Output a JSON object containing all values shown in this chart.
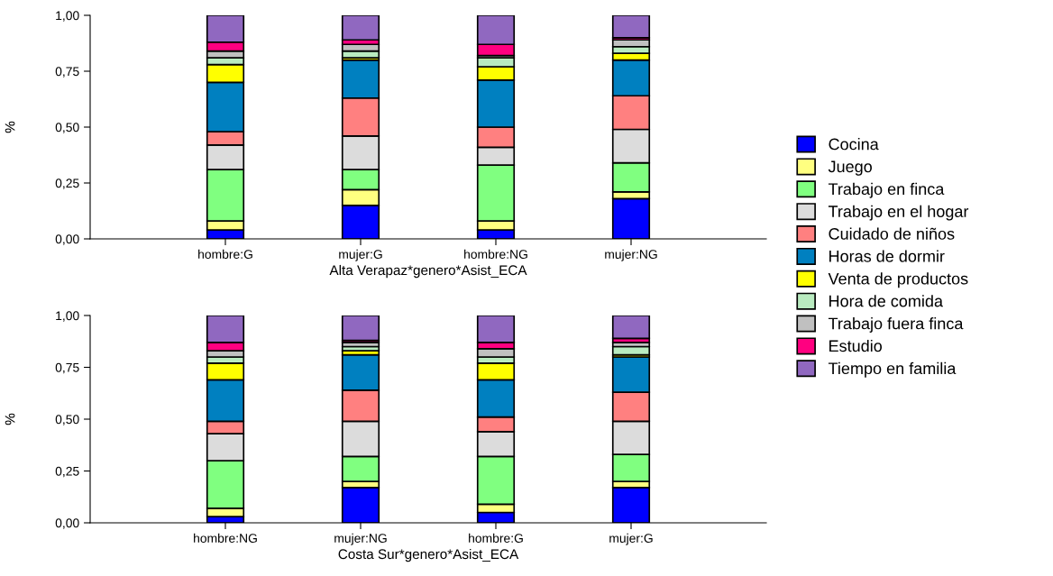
{
  "chart_data": [
    {
      "type": "bar",
      "stacked": true,
      "xlabel": "Alta Verapaz*genero*Asist_ECA",
      "ylabel": "%",
      "categories": [
        "hombre:G",
        "mujer:G",
        "hombre:NG",
        "mujer:NG"
      ],
      "ylim": [
        0,
        1
      ],
      "yticks": [
        {
          "value": 0,
          "label": "0,00"
        },
        {
          "value": 0.25,
          "label": "0,25"
        },
        {
          "value": 0.5,
          "label": "0,50"
        },
        {
          "value": 0.75,
          "label": "0,75"
        },
        {
          "value": 1,
          "label": "1,00"
        }
      ],
      "grid": false,
      "legend": "right",
      "series": [
        {
          "name": "Cocina",
          "color": "#0000ff",
          "values": [
            0.04,
            0.15,
            0.04,
            0.18
          ]
        },
        {
          "name": "Juego",
          "color": "#ffff80",
          "values": [
            0.04,
            0.07,
            0.04,
            0.03
          ]
        },
        {
          "name": "Trabajo en finca",
          "color": "#80ff80",
          "values": [
            0.23,
            0.09,
            0.25,
            0.13
          ]
        },
        {
          "name": "Trabajo en el hogar",
          "color": "#dcdcdc",
          "values": [
            0.11,
            0.15,
            0.08,
            0.15
          ]
        },
        {
          "name": "Cuidado de niños",
          "color": "#ff8080",
          "values": [
            0.06,
            0.17,
            0.09,
            0.15
          ]
        },
        {
          "name": "Horas de dormir",
          "color": "#0080c0",
          "values": [
            0.22,
            0.17,
            0.21,
            0.16
          ]
        },
        {
          "name": "Venta de productos",
          "color": "#ffff00",
          "values": [
            0.08,
            0.01,
            0.06,
            0.03
          ]
        },
        {
          "name": "Hora de comida",
          "color": "#b9ebc0",
          "values": [
            0.03,
            0.03,
            0.04,
            0.03
          ]
        },
        {
          "name": "Trabajo fuera finca",
          "color": "#c0c0c0",
          "values": [
            0.03,
            0.03,
            0.01,
            0.03
          ]
        },
        {
          "name": "Estudio",
          "color": "#ff0080",
          "values": [
            0.04,
            0.02,
            0.05,
            0.01
          ]
        },
        {
          "name": "Tiempo en familia",
          "color": "#9068c0",
          "values": [
            0.12,
            0.11,
            0.13,
            0.1
          ]
        }
      ]
    },
    {
      "type": "bar",
      "stacked": true,
      "xlabel": "Costa Sur*genero*Asist_ECA",
      "ylabel": "%",
      "categories": [
        "hombre:NG",
        "mujer:NG",
        "hombre:G",
        "mujer:G"
      ],
      "ylim": [
        0,
        1
      ],
      "yticks": [
        {
          "value": 0,
          "label": "0,00"
        },
        {
          "value": 0.25,
          "label": "0,25"
        },
        {
          "value": 0.5,
          "label": "0,50"
        },
        {
          "value": 0.75,
          "label": "0,75"
        },
        {
          "value": 1,
          "label": "1,00"
        }
      ],
      "grid": false,
      "legend": false,
      "series": [
        {
          "color": "#0000ff",
          "values": [
            0.03,
            0.17,
            0.05,
            0.17
          ]
        },
        {
          "color": "#ffff80",
          "values": [
            0.04,
            0.03,
            0.04,
            0.03
          ]
        },
        {
          "color": "#80ff80",
          "values": [
            0.23,
            0.12,
            0.23,
            0.13
          ]
        },
        {
          "color": "#dcdcdc",
          "values": [
            0.13,
            0.17,
            0.12,
            0.16
          ]
        },
        {
          "color": "#ff8080",
          "values": [
            0.06,
            0.15,
            0.07,
            0.14
          ]
        },
        {
          "color": "#0080c0",
          "values": [
            0.2,
            0.17,
            0.18,
            0.17
          ]
        },
        {
          "color": "#ffff00",
          "values": [
            0.08,
            0.02,
            0.08,
            0.01
          ]
        },
        {
          "color": "#b9ebc0",
          "values": [
            0.03,
            0.02,
            0.03,
            0.04
          ]
        },
        {
          "color": "#c0c0c0",
          "values": [
            0.03,
            0.02,
            0.04,
            0.02
          ]
        },
        {
          "color": "#ff0080",
          "values": [
            0.04,
            0.01,
            0.03,
            0.02
          ]
        },
        {
          "color": "#9068c0",
          "values": [
            0.13,
            0.12,
            0.13,
            0.11
          ]
        }
      ]
    }
  ]
}
